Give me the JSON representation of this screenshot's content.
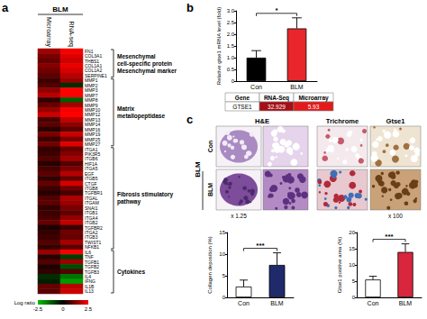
{
  "chart_data": [
    {
      "type": "heatmap",
      "panel_label": "a",
      "column_header": "BLM",
      "x": [
        "Microarray",
        "RNA-seq"
      ],
      "y": [
        "FN1",
        "COL3A1",
        "THBS1",
        "COL1A1",
        "COL1A2",
        "SERPINE1",
        "MMP1",
        "MMP2",
        "MMP3",
        "MMP7",
        "MMP8",
        "MMP9",
        "MMP10",
        "MMP12",
        "MMP13",
        "MMP14",
        "MMP16",
        "MMP19",
        "MMP25",
        "MMP27",
        "ITGA1",
        "PIK3R5",
        "ITGB6",
        "HIF1A",
        "ITGA5",
        "EGF",
        "ITGB5",
        "CTGF",
        "ITGB8",
        "TGFBR1",
        "ITGAL",
        "ITGAM",
        "SNAI1",
        "ITGB1",
        "ITGA4",
        "ITGB2",
        "TGFBR2",
        "ITGA2",
        "ITGB3",
        "TWIST1",
        "NFKB1",
        "IL6",
        "TNF",
        "TGFB1",
        "TGFB2",
        "TGFB3",
        "IL4",
        "IFNG",
        "IL1B",
        "IL13"
      ],
      "cells": [
        [
          1.6,
          2.4
        ],
        [
          1.2,
          2.2
        ],
        [
          1.0,
          2.0
        ],
        [
          1.3,
          2.3
        ],
        [
          1.1,
          2.1
        ],
        [
          0.9,
          1.8
        ],
        [
          0.6,
          1.5
        ],
        [
          0.8,
          -0.6
        ],
        [
          1.4,
          2.5
        ],
        [
          1.8,
          2.5
        ],
        [
          0.5,
          -1.2
        ],
        [
          1.0,
          1.6
        ],
        [
          1.5,
          2.4
        ],
        [
          2.0,
          2.5
        ],
        [
          0.7,
          1.9
        ],
        [
          0.9,
          1.4
        ],
        [
          0.4,
          0.9
        ],
        [
          1.2,
          2.0
        ],
        [
          0.6,
          1.2
        ],
        [
          1.1,
          2.2
        ],
        [
          0.5,
          1.0
        ],
        [
          0.6,
          1.3
        ],
        [
          0.8,
          1.6
        ],
        [
          0.4,
          0.8
        ],
        [
          0.7,
          1.2
        ],
        [
          0.9,
          1.8
        ],
        [
          0.5,
          1.0
        ],
        [
          1.0,
          2.1
        ],
        [
          0.6,
          1.1
        ],
        [
          0.4,
          0.7
        ],
        [
          0.8,
          1.7
        ],
        [
          0.9,
          1.5
        ],
        [
          0.5,
          1.2
        ],
        [
          0.6,
          0.9
        ],
        [
          0.7,
          1.4
        ],
        [
          1.0,
          1.9
        ],
        [
          0.3,
          0.6
        ],
        [
          0.5,
          1.1
        ],
        [
          0.6,
          1.0
        ],
        [
          0.8,
          1.6
        ],
        [
          0.5,
          0.9
        ],
        [
          1.5,
          2.4
        ],
        [
          0.4,
          -0.8
        ],
        [
          0.8,
          1.5
        ],
        [
          0.3,
          -1.0
        ],
        [
          0.5,
          0.8
        ],
        [
          -0.6,
          -1.5
        ],
        [
          -0.4,
          -2.0
        ],
        [
          1.0,
          1.8
        ],
        [
          0.9,
          2.0
        ]
      ],
      "groups": [
        {
          "labels": [
            "Mesenchymal cell-specific protein",
            "Mesenchymal marker"
          ],
          "first": "FN1",
          "last": "SERPINE1"
        },
        {
          "labels": [
            "Matrix metallopeptidase"
          ],
          "first": "MMP1",
          "last": "MMP27"
        },
        {
          "labels": [
            "Fibrosis stimulatory pathway"
          ],
          "first": "ITGA1",
          "last": "NFKB1"
        },
        {
          "labels": [
            "Cytokines"
          ],
          "first": "IL6",
          "last": "IL13"
        }
      ],
      "color_scale": {
        "label": "Log ratio",
        "range": [
          -2.5,
          2.5
        ],
        "ticks": [
          -2.5,
          0,
          2.5
        ],
        "colors": [
          "#00c000",
          "#000000",
          "#ff0000"
        ]
      }
    },
    {
      "type": "bar",
      "panel_label": "b",
      "y_label": "Relative gtse1 mRNA level (fold)",
      "categories": [
        "Con",
        "BLM"
      ],
      "values": [
        1.0,
        2.25
      ],
      "errors": [
        0.3,
        0.45
      ],
      "colors": [
        "#000000",
        "#e8262b"
      ],
      "significance": "*",
      "ylim": [
        0,
        3
      ],
      "yticks": [
        0,
        0.5,
        {
          "value": 1,
          "label": "1.0"
        },
        1.5,
        {
          "value": 2,
          "label": "2.0"
        },
        2.5,
        {
          "value": 3,
          "label": "3.0"
        }
      ],
      "grid": false
    },
    {
      "type": "bar",
      "panel_label": "c",
      "y_label": "Collagen deposition (%)",
      "categories": [
        "Con",
        "BLM"
      ],
      "values": [
        2.5,
        7.5
      ],
      "errors": [
        1.5,
        2.8
      ],
      "colors": [
        "#ffffff",
        "#1f2a6b"
      ],
      "significance": "***",
      "ylim": [
        0,
        15
      ],
      "yticks": [
        0,
        5,
        10,
        15
      ],
      "grid": false
    },
    {
      "type": "bar",
      "y_label": "Gtse1 positive area (%)",
      "categories": [
        "Con",
        "BLM"
      ],
      "values": [
        5.5,
        14
      ],
      "errors": [
        1.0,
        2.5
      ],
      "colors": [
        "#ffffff",
        "#d7263d"
      ],
      "significance": "***",
      "ylim": [
        0,
        20
      ],
      "yticks": [
        0,
        5,
        10,
        15,
        20
      ],
      "grid": false
    }
  ],
  "table": {
    "header": [
      "Gene",
      "RNA-Seq",
      "Microarray"
    ],
    "rows": [
      [
        "GTSE1",
        32.929,
        5.93
      ]
    ]
  },
  "images": {
    "columns": [
      "H&E",
      "Trichrome",
      "Gtse1"
    ],
    "rows": [
      "Con",
      "BLM"
    ],
    "group_label": "BLM",
    "magnifications": [
      "x 1.25",
      "x 100"
    ]
  }
}
